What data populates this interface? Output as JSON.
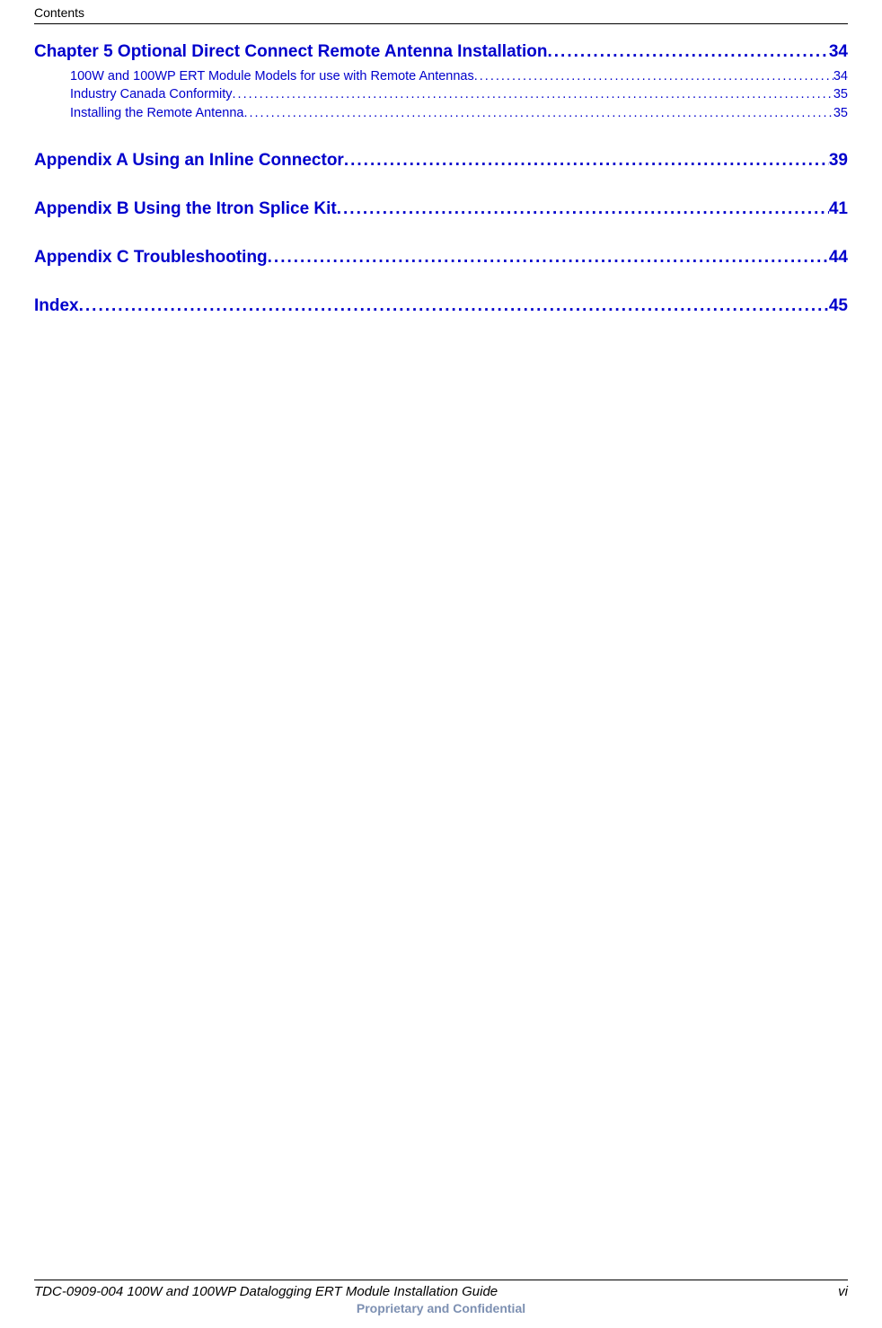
{
  "header": {
    "label": "Contents"
  },
  "link_color": "#0000cc",
  "toc": [
    {
      "type": "chapter",
      "title": "Chapter 5  Optional Direct Connect Remote Antenna Installation",
      "page": "34",
      "first": true,
      "subs": [
        {
          "title": "100W and 100WP ERT Module Models for use with Remote Antennas",
          "page": "34"
        },
        {
          "title": "Industry Canada Conformity",
          "page": "35"
        },
        {
          "title": "Installing the Remote Antenna",
          "page": "35"
        }
      ]
    },
    {
      "type": "chapter",
      "title": "Appendix A  Using an Inline Connector",
      "page": "39",
      "subs": []
    },
    {
      "type": "chapter",
      "title": "Appendix B  Using the Itron Splice Kit",
      "page": "41",
      "subs": []
    },
    {
      "type": "chapter",
      "title": "Appendix C  Troubleshooting",
      "page": "44",
      "subs": []
    },
    {
      "type": "chapter",
      "title": "Index",
      "page": "45",
      "subs": []
    }
  ],
  "footer": {
    "left": "TDC-0909-004 100W and 100WP Datalogging ERT Module Installation Guide",
    "right": "vi",
    "confidential": "Proprietary and Confidential"
  },
  "dots": "...................................................................................................................................................................................................................."
}
